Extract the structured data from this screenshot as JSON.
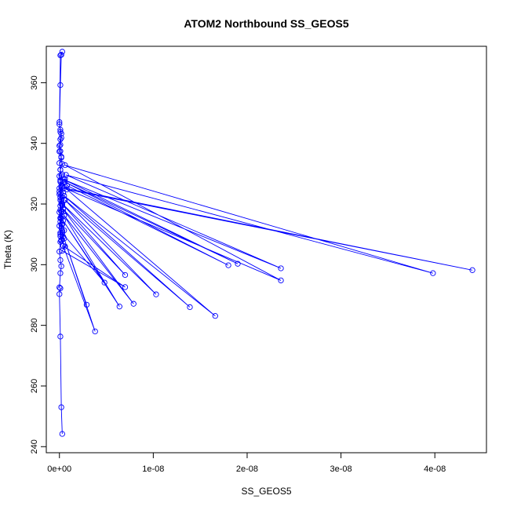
{
  "chart_data": {
    "type": "line",
    "title": "ATOM2 Northbound SS_GEOS5",
    "xlabel": "SS_GEOS5",
    "ylabel": "Theta (K)",
    "xlim": [
      -1.4e-09,
      4.55e-08
    ],
    "ylim": [
      238,
      372
    ],
    "x_ticks": [
      0,
      1e-08,
      2e-08,
      3e-08,
      4e-08
    ],
    "x_tick_labels": [
      "0e+00",
      "1e-08",
      "2e-08",
      "3e-08",
      "4e-08"
    ],
    "y_ticks": [
      240,
      260,
      280,
      300,
      320,
      340,
      360
    ],
    "y_tick_labels": [
      "240",
      "260",
      "280",
      "300",
      "320",
      "340",
      "360"
    ],
    "grid": false,
    "series_color": "#0000ff",
    "series": [
      {
        "x": [
          3e-10,
          2e-10,
          1e-10,
          0,
          1e-10,
          0,
          1e-10,
          2e-10,
          1e-10,
          0,
          1e-10,
          2e-10,
          1e-10,
          0,
          1e-10,
          2e-10,
          3e-10,
          2e-10,
          1e-10,
          0,
          1e-10,
          2e-10,
          1e-10,
          0,
          2e-10,
          1e-10,
          0,
          1e-10,
          2e-10,
          1e-10,
          0,
          1e-10,
          2e-10,
          3e-10,
          1e-10,
          0,
          1e-10,
          2e-10,
          1e-10,
          0,
          2e-10,
          3e-10,
          1e-10,
          0,
          1e-10,
          2e-10,
          0,
          1e-10,
          1e-10,
          0,
          1e-10,
          2e-10,
          3e-10,
          1e-10,
          2e-10,
          4e-10,
          5e-10,
          3e-10,
          2e-10,
          4e-10,
          3e-10,
          5e-10,
          4e-10,
          3e-10,
          5e-10,
          6e-10,
          8e-10,
          1.8e-08,
          6e-10,
          1.9e-08,
          5e-10,
          2.36e-08,
          7e-10,
          3.98e-08,
          6e-10,
          2.36e-08,
          5e-10,
          4.4e-08,
          8e-10,
          1.66e-08,
          5e-10,
          1.39e-08,
          6e-10,
          1.03e-08,
          3e-10,
          7e-09,
          4e-10,
          7.9e-09,
          5e-10,
          6.4e-09,
          4e-10,
          4.8e-09,
          3e-10,
          2.9e-09,
          5e-10,
          3.8e-09,
          4e-10,
          7e-09,
          3e-10,
          6e-10,
          2e-10,
          1e-10,
          2e-10,
          1e-10,
          2e-10,
          1e-10,
          2e-10,
          1e-10,
          0,
          2e-10,
          1e-10,
          3e-10
        ],
        "y": [
          244.2,
          253,
          276.3,
          290.3,
          292.2,
          292.5,
          297.2,
          299.5,
          301.5,
          304.3,
          307.5,
          308.2,
          310.5,
          312.8,
          315.4,
          317.5,
          319.6,
          321.5,
          323.5,
          325.2,
          327.5,
          329.4,
          331.3,
          333.5,
          335.6,
          337.4,
          339.2,
          341.3,
          343.2,
          344.5,
          346.3,
          359.2,
          369.2,
          370.2,
          369,
          347,
          343.8,
          341.8,
          339.5,
          337.3,
          335.3,
          333.2,
          331.3,
          329.2,
          327.3,
          325.4,
          323.2,
          321.3,
          319.4,
          317.3,
          315.3,
          313.3,
          311.2,
          309.4,
          307.8,
          309.2,
          311.3,
          313.2,
          315.3,
          317.4,
          319.5,
          321.4,
          323.6,
          325.7,
          327.4,
          328.3,
          326.1,
          299.8,
          327.2,
          300.3,
          328.0,
          298.8,
          329.6,
          297.2,
          332.8,
          294.8,
          325.3,
          298.2,
          324.8,
          283.1,
          322.7,
          286.0,
          321.3,
          290.2,
          320.1,
          296.6,
          318.3,
          287.1,
          316.2,
          286.2,
          314.5,
          294.1,
          310.4,
          286.8,
          308.6,
          278.0,
          306.2,
          292.6,
          304.6,
          306.0,
          308.1,
          310.0,
          312.1,
          314.2,
          316.1,
          318.0,
          320.1,
          322.2,
          324.1,
          326.0,
          327.9,
          329.8
        ]
      }
    ]
  }
}
